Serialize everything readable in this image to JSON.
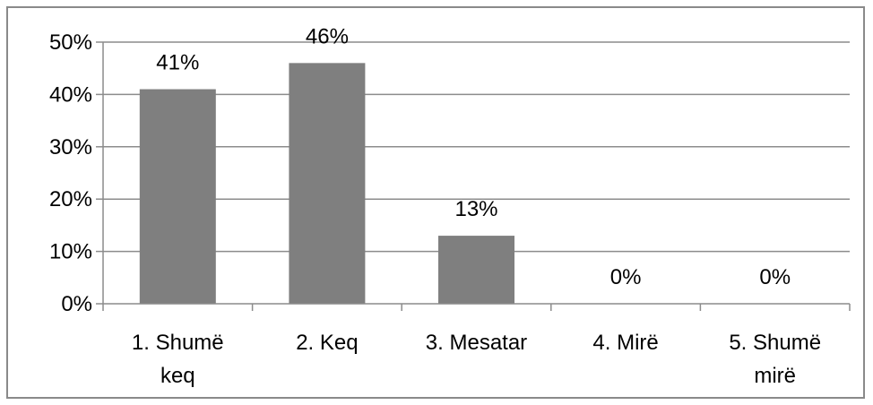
{
  "chart_data": {
    "type": "bar",
    "categories": [
      [
        "1. Shumë",
        "keq"
      ],
      [
        "2. Keq"
      ],
      [
        "3. Mesatar"
      ],
      [
        "4. Mirë"
      ],
      [
        "5. Shumë",
        "mirë"
      ]
    ],
    "values": [
      41,
      46,
      13,
      0,
      0
    ],
    "data_labels": [
      "41%",
      "46%",
      "13%",
      "0%",
      "0%"
    ],
    "y_ticks": [
      "0%",
      "10%",
      "20%",
      "30%",
      "40%",
      "50%"
    ],
    "ylim": [
      0,
      50
    ],
    "title": "",
    "xlabel": "",
    "ylabel": "",
    "grid": true,
    "legend": "none",
    "colors": {
      "bar": "#7f7f7f",
      "grid": "#8c8c8c",
      "axis": "#8c8c8c",
      "border": "#8a8a8a"
    }
  }
}
